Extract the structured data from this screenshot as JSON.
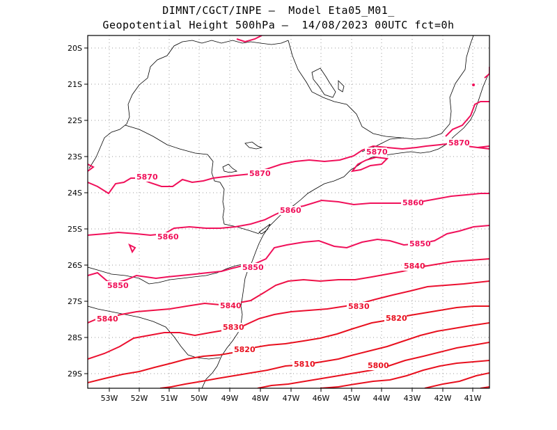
{
  "header": {
    "line1": "DIMNT/CGCT/INPE —  Model Eta05_M01_",
    "line2": "Geopotential Height 500hPa —  14/08/2023 00UTC fct=0h"
  },
  "axes": {
    "lat_labels": [
      "20S",
      "21S",
      "22S",
      "23S",
      "24S",
      "25S",
      "26S",
      "27S",
      "28S",
      "29S"
    ],
    "lon_labels": [
      "53W",
      "52W",
      "51W",
      "50W",
      "49W",
      "48W",
      "47W",
      "46W",
      "45W",
      "44W",
      "43W",
      "42W",
      "41W"
    ]
  },
  "colors": {
    "pink": "#f0105a",
    "red": "#e8101e",
    "coast": "#000000",
    "grid": "#999999"
  },
  "contours": {
    "c5870": "5870",
    "c5860": "5860",
    "c5850": "5850",
    "c5840": "5840",
    "c5830": "5830",
    "c5820": "5820",
    "c5810": "5810",
    "c5800": "5800"
  }
}
